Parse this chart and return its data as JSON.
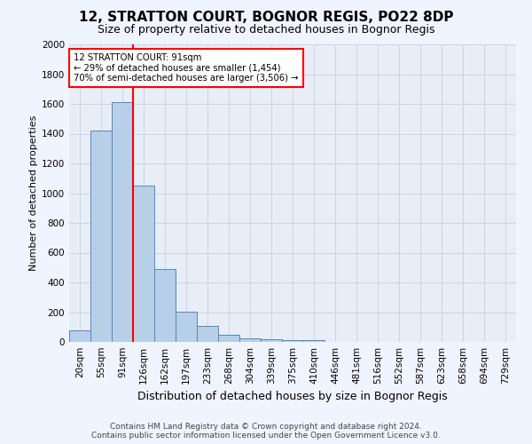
{
  "title": "12, STRATTON COURT, BOGNOR REGIS, PO22 8DP",
  "subtitle": "Size of property relative to detached houses in Bognor Regis",
  "xlabel": "Distribution of detached houses by size in Bognor Regis",
  "ylabel": "Number of detached properties",
  "bin_labels": [
    "20sqm",
    "55sqm",
    "91sqm",
    "126sqm",
    "162sqm",
    "197sqm",
    "233sqm",
    "268sqm",
    "304sqm",
    "339sqm",
    "375sqm",
    "410sqm",
    "446sqm",
    "481sqm",
    "516sqm",
    "552sqm",
    "587sqm",
    "623sqm",
    "658sqm",
    "694sqm",
    "729sqm"
  ],
  "bar_values": [
    80,
    1420,
    1610,
    1050,
    490,
    205,
    105,
    45,
    25,
    15,
    12,
    10,
    0,
    0,
    0,
    0,
    0,
    0,
    0,
    0,
    0
  ],
  "bar_color": "#b8cfe8",
  "bar_edge_color": "#5588bb",
  "highlight_line_color": "red",
  "highlight_line_index": 2,
  "annotation_title": "12 STRATTON COURT: 91sqm",
  "annotation_line1": "← 29% of detached houses are smaller (1,454)",
  "annotation_line2": "70% of semi-detached houses are larger (3,506) →",
  "ylim": [
    0,
    2000
  ],
  "yticks": [
    0,
    200,
    400,
    600,
    800,
    1000,
    1200,
    1400,
    1600,
    1800,
    2000
  ],
  "footer_line1": "Contains HM Land Registry data © Crown copyright and database right 2024.",
  "footer_line2": "Contains public sector information licensed under the Open Government Licence v3.0.",
  "fig_bg_color": "#f0f4ff",
  "plot_bg_color": "#e8eef8",
  "grid_color": "#c8d0e0",
  "title_fontsize": 11,
  "subtitle_fontsize": 9,
  "xlabel_fontsize": 9,
  "ylabel_fontsize": 8,
  "tick_fontsize": 7.5,
  "footer_fontsize": 6.5
}
